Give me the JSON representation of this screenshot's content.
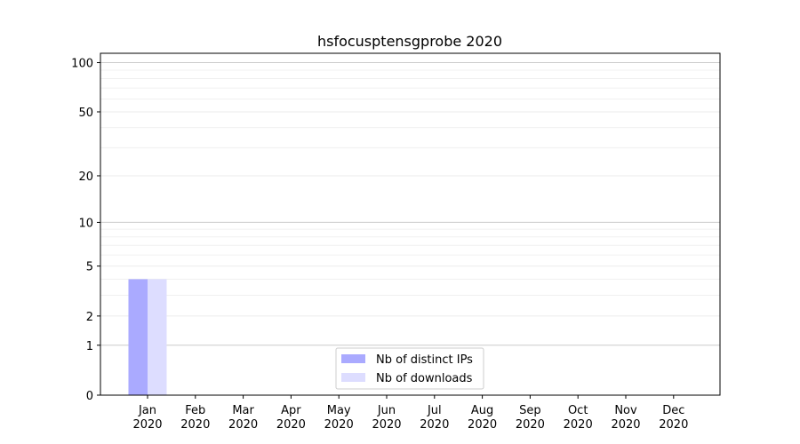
{
  "chart_data": {
    "type": "bar",
    "title": "hsfocusptensgprobe 2020",
    "xlabel": "",
    "ylabel": "",
    "categories": [
      "Jan\n2020",
      "Feb\n2020",
      "Mar\n2020",
      "Apr\n2020",
      "May\n2020",
      "Jun\n2020",
      "Jul\n2020",
      "Aug\n2020",
      "Sep\n2020",
      "Oct\n2020",
      "Nov\n2020",
      "Dec\n2020"
    ],
    "series": [
      {
        "name": "Nb of distinct IPs",
        "color": "#aaaaff",
        "values": [
          4,
          0,
          0,
          0,
          0,
          0,
          0,
          0,
          0,
          0,
          0,
          0
        ]
      },
      {
        "name": "Nb of downloads",
        "color": "#ddddff",
        "values": [
          4,
          0,
          0,
          0,
          0,
          0,
          0,
          0,
          0,
          0,
          0,
          0
        ]
      }
    ],
    "yscale": "log(1+y)",
    "yticks": [
      0,
      1,
      2,
      5,
      10,
      20,
      50,
      100
    ],
    "ylim": [
      0,
      114
    ],
    "grid": true,
    "legend": "bottom-center"
  }
}
